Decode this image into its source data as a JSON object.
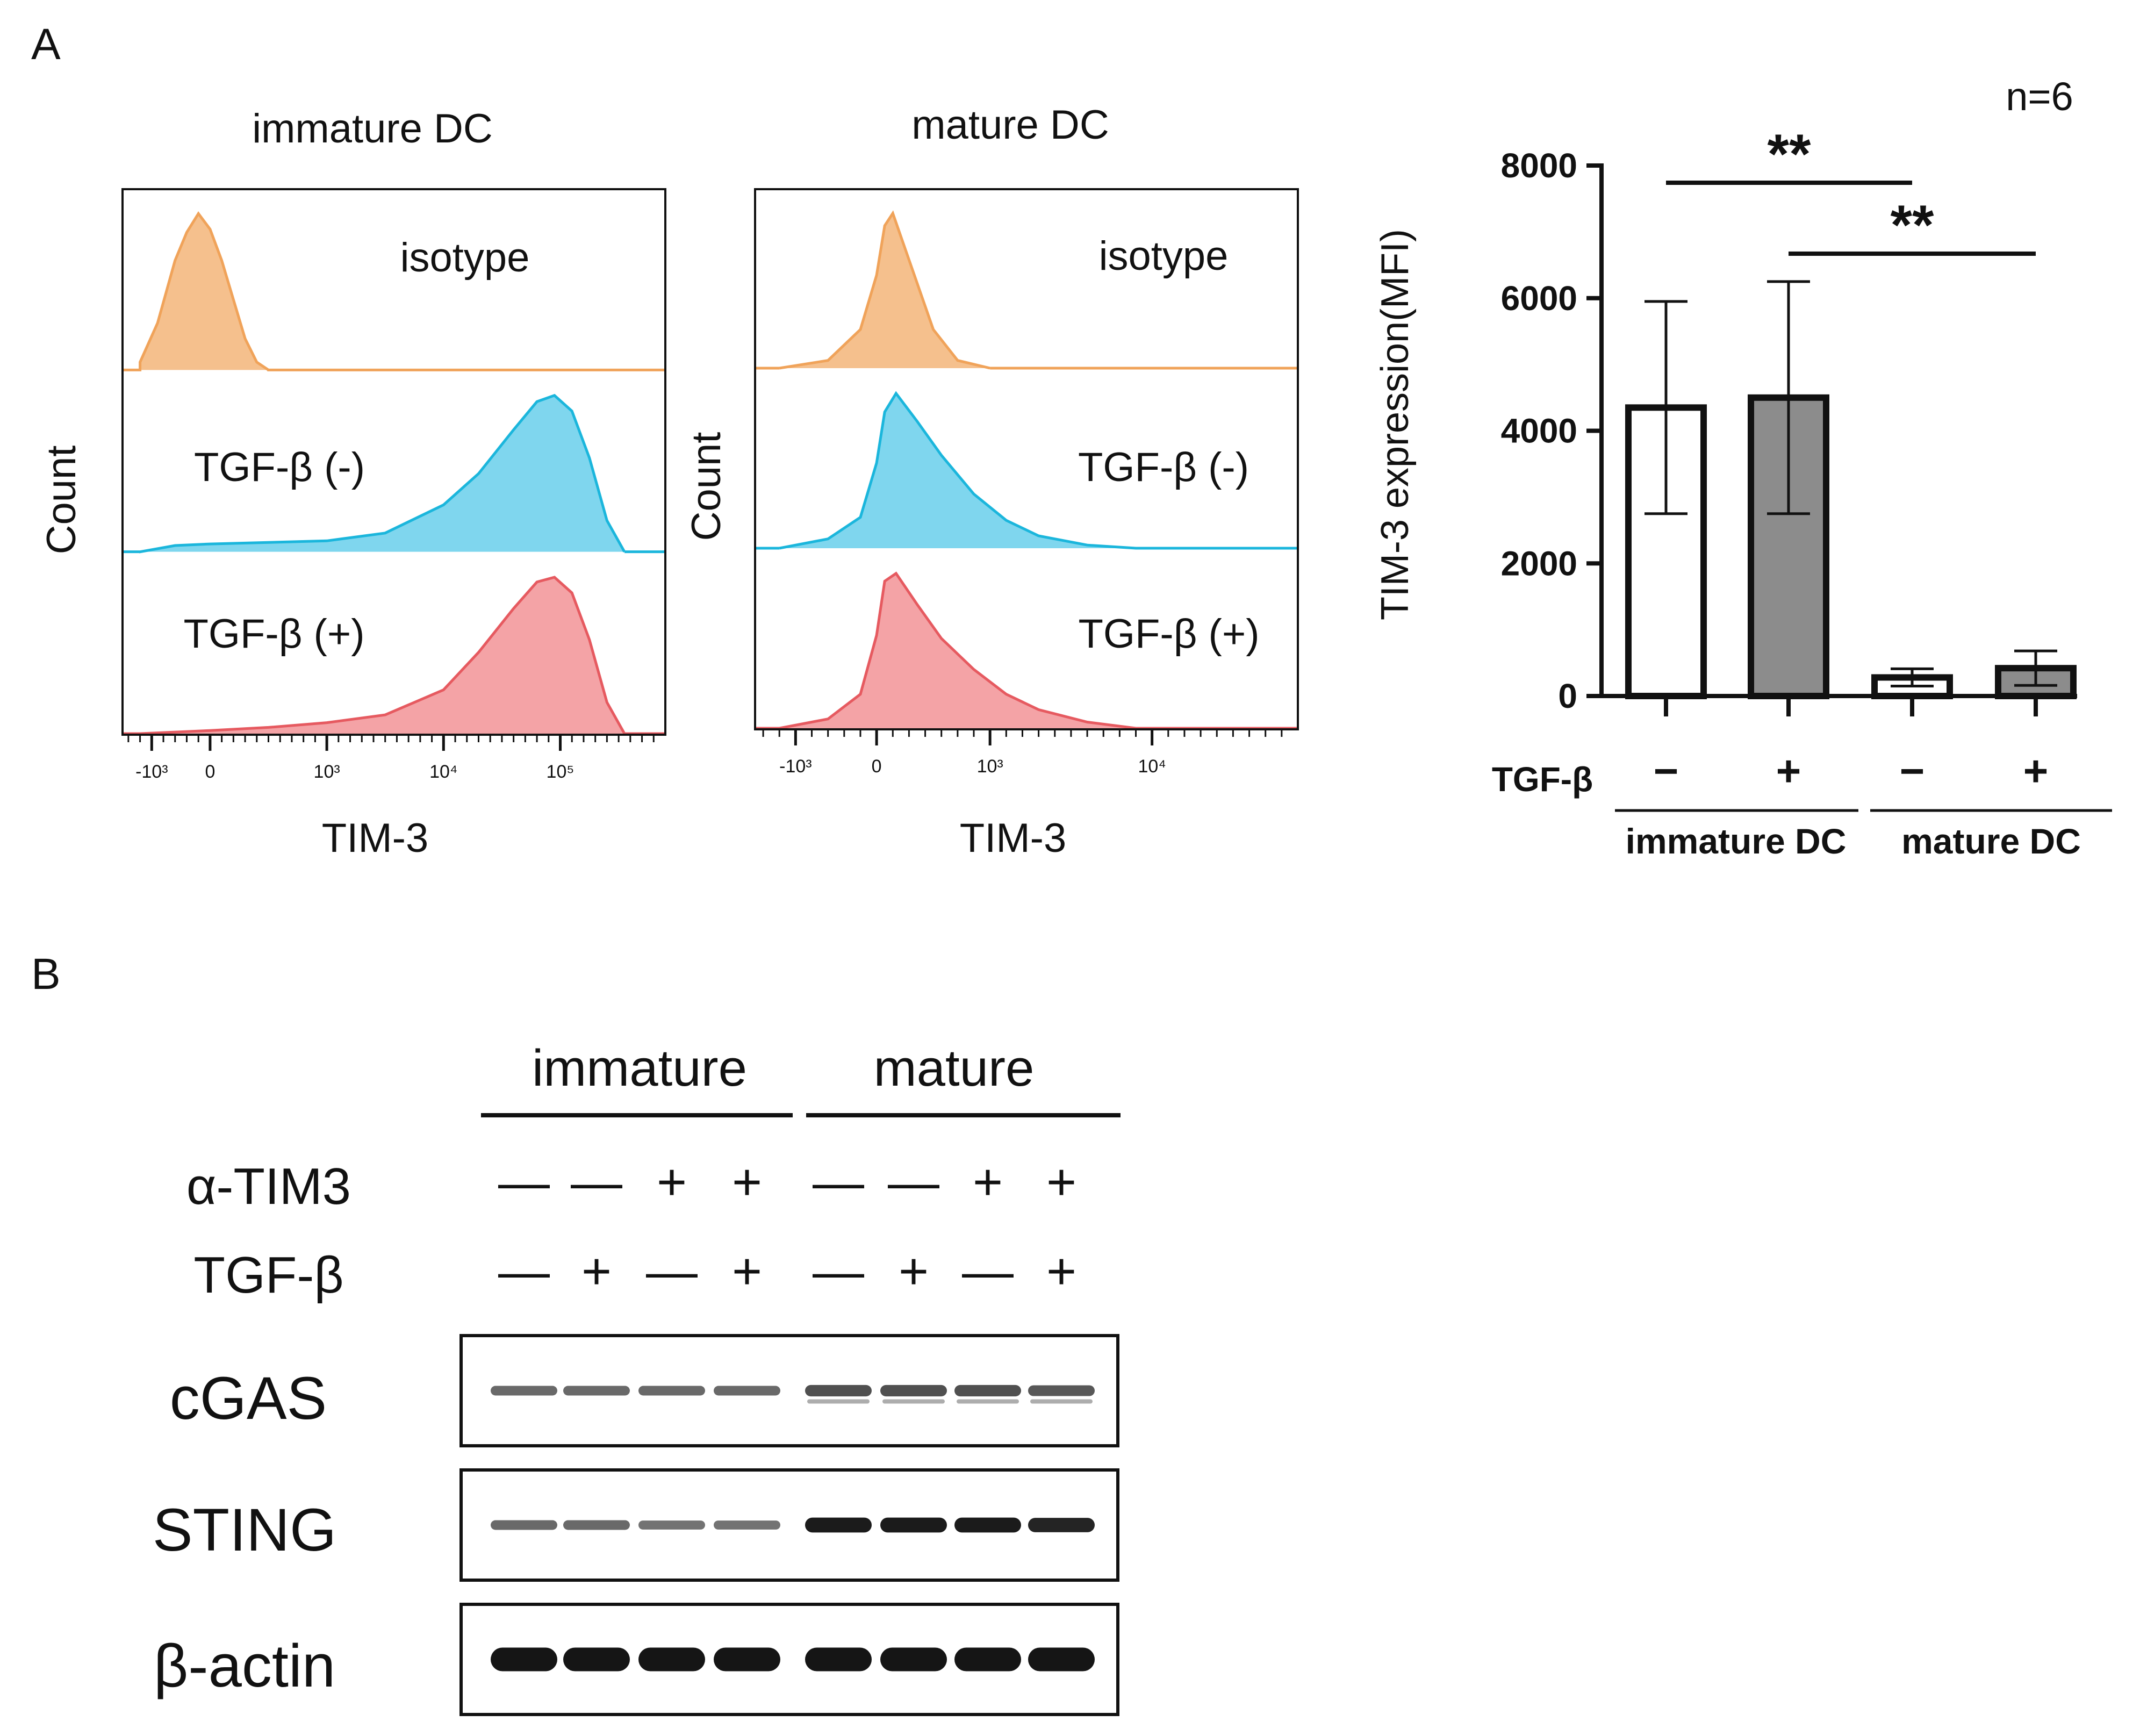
{
  "panels": {
    "A": "A",
    "B": "B"
  },
  "colors": {
    "isotype": "#f5c08d",
    "isotype_stroke": "#f0a35a",
    "tgf_minus": "#7fd6ee",
    "tgf_minus_stroke": "#1bb6dc",
    "tgf_plus": "#f4a3a6",
    "tgf_plus_stroke": "#e65a60",
    "bar_immature": "#ffffff",
    "bar_mature": "#8c8c8c",
    "band": "#151515"
  },
  "chart_data": [
    {
      "type": "area",
      "title": "immature DC",
      "xlabel": "TIM-3",
      "ylabel": "Count",
      "x_ticks": [
        "-10³",
        "0",
        "10³",
        "10⁴",
        "10⁵"
      ],
      "series": [
        {
          "name": "isotype",
          "label": "isotype",
          "x": [
            -0.6,
            -0.45,
            -0.3,
            -0.2,
            -0.1,
            0.0,
            0.1,
            0.2,
            0.3,
            0.4,
            0.5
          ],
          "values": [
            0.05,
            0.3,
            0.7,
            0.88,
            1.0,
            0.9,
            0.7,
            0.45,
            0.2,
            0.05,
            0.0
          ]
        },
        {
          "name": "TGF-β (-)",
          "label": "TGF-β (-)",
          "x": [
            -0.6,
            -0.3,
            0.0,
            0.5,
            1.0,
            1.5,
            2.0,
            2.3,
            2.6,
            2.8,
            2.95,
            3.1,
            3.25,
            3.4,
            3.55
          ],
          "values": [
            0.0,
            0.04,
            0.05,
            0.06,
            0.07,
            0.12,
            0.3,
            0.5,
            0.78,
            0.96,
            1.0,
            0.9,
            0.6,
            0.2,
            0.0
          ]
        },
        {
          "name": "TGF-β (+)",
          "label": "TGF-β (+)",
          "x": [
            -0.6,
            -0.3,
            0.0,
            0.5,
            1.0,
            1.5,
            2.0,
            2.3,
            2.6,
            2.8,
            2.95,
            3.1,
            3.25,
            3.4,
            3.55
          ],
          "values": [
            0.0,
            0.01,
            0.02,
            0.04,
            0.07,
            0.12,
            0.28,
            0.52,
            0.8,
            0.97,
            1.0,
            0.9,
            0.6,
            0.2,
            0.0
          ]
        }
      ]
    },
    {
      "type": "area",
      "title": "mature DC",
      "xlabel": "TIM-3",
      "ylabel": "Count",
      "x_ticks": [
        "-10³",
        "0",
        "10³",
        "10⁴"
      ],
      "series": [
        {
          "name": "isotype",
          "label": "isotype",
          "x": [
            -0.6,
            -0.3,
            -0.1,
            0.0,
            0.05,
            0.1,
            0.2,
            0.35,
            0.5,
            0.7
          ],
          "values": [
            0.0,
            0.05,
            0.25,
            0.6,
            0.92,
            1.0,
            0.7,
            0.25,
            0.05,
            0.0
          ]
        },
        {
          "name": "TGF-β (-)",
          "label": "TGF-β (-)",
          "x": [
            -0.6,
            -0.3,
            -0.1,
            0.0,
            0.05,
            0.12,
            0.25,
            0.4,
            0.6,
            0.8,
            1.0,
            1.3,
            1.6
          ],
          "values": [
            0.0,
            0.06,
            0.2,
            0.55,
            0.88,
            1.0,
            0.82,
            0.6,
            0.35,
            0.18,
            0.08,
            0.02,
            0.0
          ]
        },
        {
          "name": "TGF-β (+)",
          "label": "TGF-β (+)",
          "x": [
            -0.6,
            -0.3,
            -0.1,
            0.0,
            0.05,
            0.12,
            0.25,
            0.4,
            0.6,
            0.8,
            1.0,
            1.3,
            1.6
          ],
          "values": [
            0.0,
            0.06,
            0.22,
            0.6,
            0.95,
            1.0,
            0.8,
            0.58,
            0.38,
            0.22,
            0.12,
            0.04,
            0.0
          ]
        }
      ]
    },
    {
      "type": "bar",
      "ylabel": "TIM-3 expression(MFI)",
      "annotation": "n=6",
      "ylim": [
        0,
        8000
      ],
      "y_ticks": [
        0,
        2000,
        4000,
        6000,
        8000
      ],
      "y_tick_labels": [
        "0",
        "2000",
        "4000",
        "6000",
        "8000"
      ],
      "categories": [
        "immature DC TGF-β −",
        "immature DC TGF-β +",
        "mature DC TGF-β −",
        "mature DC TGF-β +"
      ],
      "tgf_label": "TGF-β",
      "tgf_signs": [
        "−",
        "+",
        "−",
        "+"
      ],
      "groups": [
        {
          "label": "immature DC",
          "members": [
            0,
            1
          ]
        },
        {
          "label": "mature DC",
          "members": [
            2,
            3
          ]
        }
      ],
      "values": [
        4350,
        4500,
        280,
        420
      ],
      "errors": [
        1600,
        1750,
        130,
        260
      ],
      "significance": [
        {
          "from": 0,
          "to": 2,
          "label": "**"
        },
        {
          "from": 1,
          "to": 3,
          "label": "**"
        }
      ]
    },
    {
      "type": "table",
      "group_headers": [
        "immature",
        "mature"
      ],
      "row_labels": [
        "α-TIM3",
        "TGF-β"
      ],
      "rows": [
        [
          "—",
          "—",
          "+",
          "+",
          "—",
          "—",
          "+",
          "+"
        ],
        [
          "—",
          "+",
          "—",
          "+",
          "—",
          "+",
          "—",
          "+"
        ]
      ],
      "blots": [
        {
          "name": "cGAS",
          "intensities": [
            0.45,
            0.45,
            0.45,
            0.45,
            0.6,
            0.6,
            0.6,
            0.55
          ],
          "doublet": [
            false,
            false,
            false,
            false,
            true,
            true,
            true,
            true
          ]
        },
        {
          "name": "STING",
          "intensities": [
            0.45,
            0.45,
            0.4,
            0.4,
            0.9,
            0.9,
            0.9,
            0.85
          ],
          "doublet": [
            false,
            false,
            false,
            false,
            false,
            false,
            false,
            false
          ]
        },
        {
          "name": "β-actin",
          "intensities": [
            1.0,
            1.0,
            1.0,
            1.0,
            1.0,
            1.0,
            1.0,
            1.0
          ],
          "doublet": [
            false,
            false,
            false,
            false,
            false,
            false,
            false,
            false
          ]
        }
      ]
    }
  ]
}
